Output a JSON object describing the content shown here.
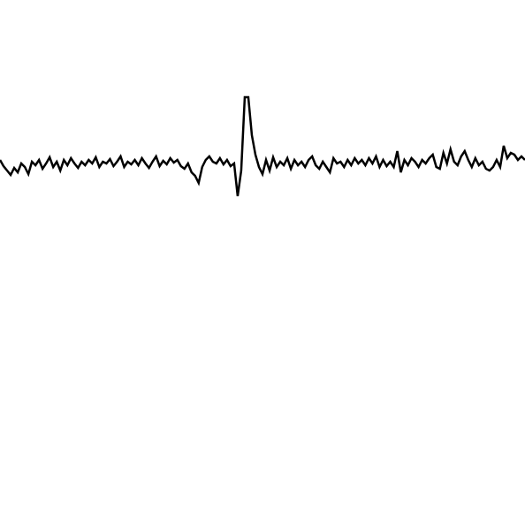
{
  "chart_data": {
    "type": "line",
    "series": [
      {
        "color": "#000000",
        "values": [
          412,
          405,
          400,
          395,
          403,
          398,
          408,
          404,
          396,
          410,
          406,
          412,
          402,
          408,
          415,
          404,
          410,
          400,
          412,
          406,
          414,
          408,
          403,
          410,
          406,
          412,
          408,
          415,
          404,
          410,
          408,
          413,
          405,
          410,
          416,
          404,
          410,
          407,
          412,
          406,
          414,
          408,
          403,
          410,
          416,
          405,
          411,
          407,
          414,
          409,
          412,
          405,
          402,
          408,
          398,
          394,
          386,
          404,
          412,
          416,
          410,
          408,
          414,
          407,
          412,
          405,
          408,
          371,
          400,
          483,
          483,
          440,
          418,
          404,
          396,
          412,
          400,
          415,
          404,
          410,
          406,
          414,
          402,
          412,
          406,
          410,
          404,
          412,
          416,
          406,
          402,
          410,
          404,
          398,
          414,
          408,
          410,
          404,
          412,
          406,
          414,
          408,
          412,
          406,
          414,
          408,
          416,
          404,
          412,
          405,
          410,
          404,
          422,
          398,
          412,
          406,
          414,
          410,
          404,
          412,
          408,
          414,
          418,
          404,
          402,
          420,
          408,
          424,
          410,
          406,
          416,
          422,
          412,
          404,
          414,
          406,
          410,
          402,
          400,
          404,
          412,
          404,
          428,
          414,
          420,
          418,
          412,
          416,
          412
        ]
      }
    ],
    "xlim": [
      0,
      148
    ],
    "ylim": [
      0,
      593
    ]
  }
}
